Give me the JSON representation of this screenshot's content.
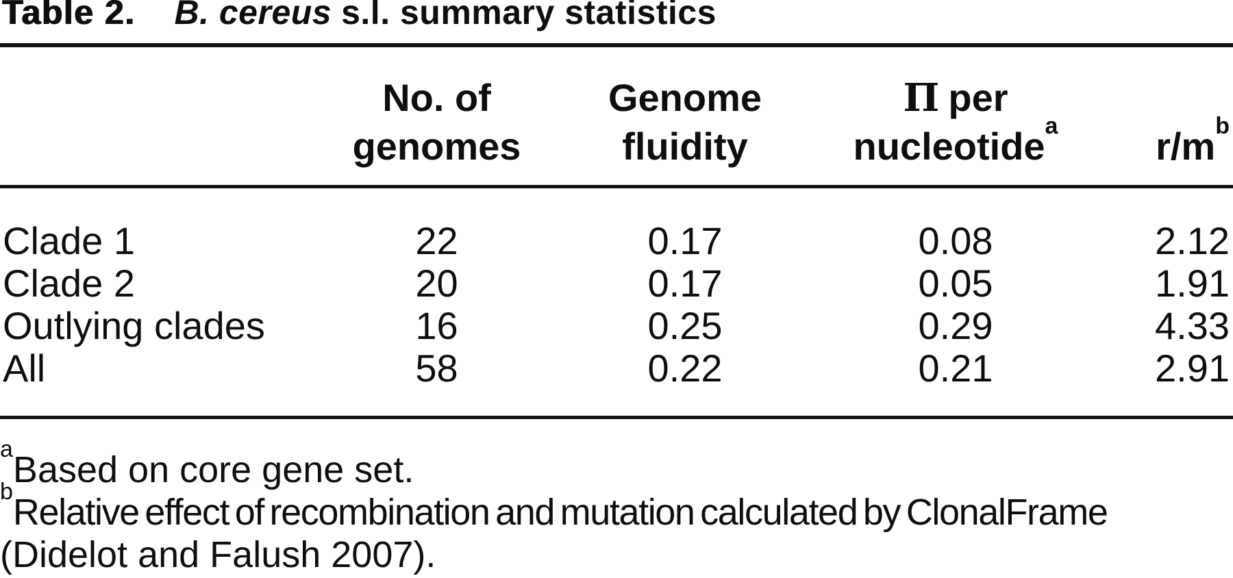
{
  "caption": {
    "label": "Table 2.",
    "species": "B. cereus",
    "rest": "s.l. summary statistics"
  },
  "columns": [
    {
      "header": ""
    },
    {
      "line1": "No. of",
      "line2": "genomes"
    },
    {
      "line1": "Genome",
      "line2": "fluidity"
    },
    {
      "symbol": "Π",
      "after_symbol": "per",
      "line2": "nucleotide",
      "sup": "a"
    },
    {
      "label": "r/m",
      "sup": "b"
    }
  ],
  "rows": [
    {
      "label": "Clade 1",
      "no_of_genomes": "22",
      "genome_fluidity": "0.17",
      "pi_per_nucleotide": "0.08",
      "r_m": "2.12"
    },
    {
      "label": "Clade 2",
      "no_of_genomes": "20",
      "genome_fluidity": "0.17",
      "pi_per_nucleotide": "0.05",
      "r_m": "1.91"
    },
    {
      "label": "Outlying clades",
      "no_of_genomes": "16",
      "genome_fluidity": "0.25",
      "pi_per_nucleotide": "0.29",
      "r_m": "4.33"
    },
    {
      "label": "All",
      "no_of_genomes": "58",
      "genome_fluidity": "0.22",
      "pi_per_nucleotide": "0.21",
      "r_m": "2.91"
    }
  ],
  "footnotes": [
    {
      "sup": "a",
      "text": "Based on core gene set."
    },
    {
      "sup": "b",
      "line1": "Relative effect of recombination and mutation calculated by ClonalFrame",
      "line2": "(Didelot and Falush 2007)."
    }
  ],
  "colors": {
    "text": "#0e0e0e",
    "background": "#ffffff",
    "rule": "#141414"
  }
}
